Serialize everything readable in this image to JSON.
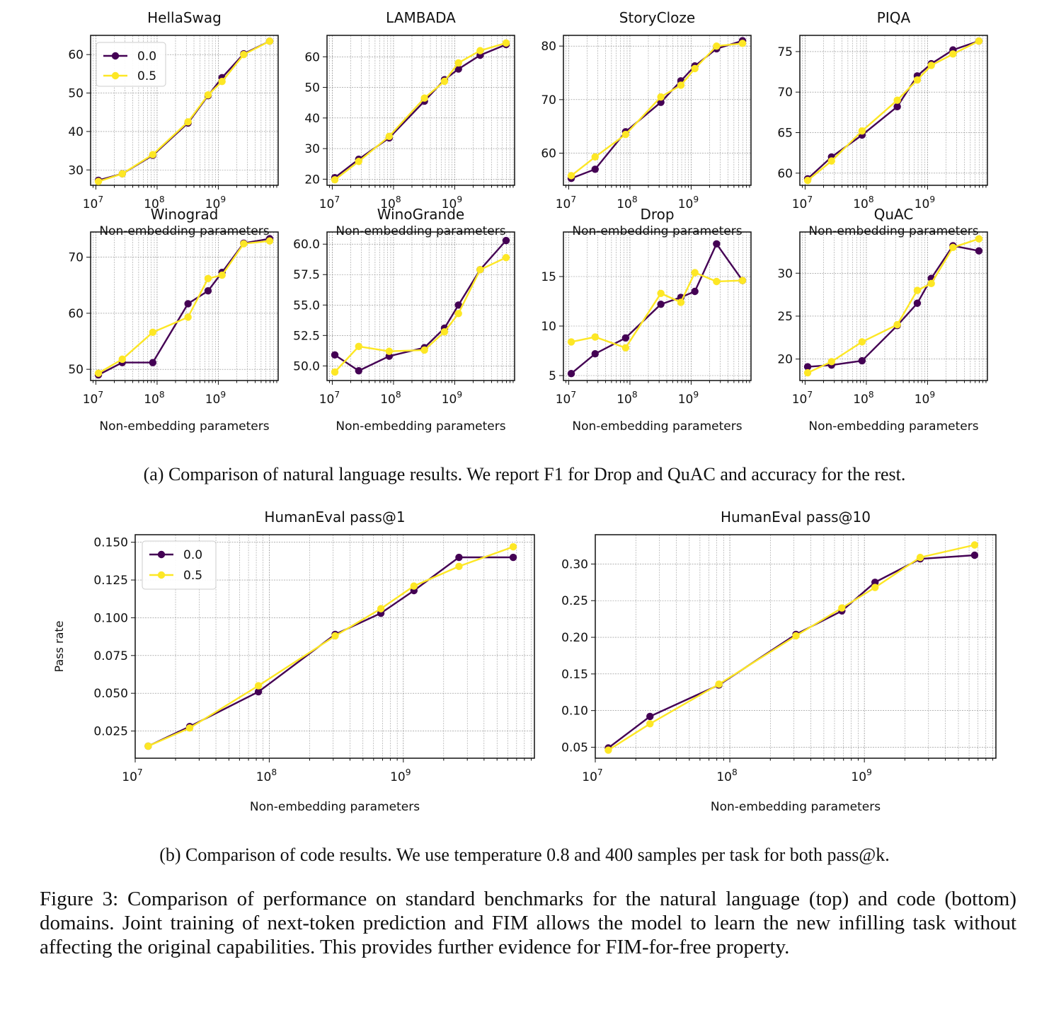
{
  "legend_labels": [
    "0.0",
    "0.5"
  ],
  "series_colors": {
    "0.0": "#440154",
    "0.5": "#fde725"
  },
  "caption_a": "(a) Comparison of natural language results. We report F1 for Drop and QuAC and accuracy for the rest.",
  "caption_b": "(b) Comparison of code results. We use temperature 0.8 and 400 samples per task for both pass@k.",
  "figure_caption": "Figure 3: Comparison of performance on standard benchmarks for the natural language (top) and code (bottom) domains. Joint training of next-token prediction and FIM allows the model to learn the new infilling task without affecting the original capabilities. This provides further evidence for FIM-for-free property.",
  "chart_data": [
    {
      "type": "line",
      "title": "HellaSwag",
      "xlabel": "Non-embedding parameters",
      "ylabel": "",
      "xscale": "log",
      "xlim": [
        8200000.0,
        9500000000.0
      ],
      "ylim": [
        26,
        65
      ],
      "yticks": [
        30,
        40,
        50,
        60
      ],
      "yticklabels": [
        "30",
        "40",
        "50",
        "60"
      ],
      "xticklabels": [
        "10^7",
        "10^8",
        "10^9"
      ],
      "grid": true,
      "legend": "upper left",
      "x": [
        11000000.0,
        27000000.0,
        85000000.0,
        320000000.0,
        680000000.0,
        1150000000.0,
        2600000000.0,
        6900000000.0
      ],
      "series": [
        {
          "name": "0.0",
          "values": [
            27.3,
            29.0,
            33.8,
            42.2,
            49.3,
            54.0,
            60.2,
            63.5
          ]
        },
        {
          "name": "0.5",
          "values": [
            27.0,
            29.0,
            34.0,
            42.5,
            49.5,
            53.0,
            60.0,
            63.5
          ]
        }
      ]
    },
    {
      "type": "line",
      "title": "LAMBADA",
      "xlabel": "Non-embedding parameters",
      "ylabel": "",
      "xscale": "log",
      "xlim": [
        8200000.0,
        9500000000.0
      ],
      "ylim": [
        18,
        67
      ],
      "yticks": [
        20,
        30,
        40,
        50,
        60
      ],
      "yticklabels": [
        "20",
        "30",
        "40",
        "50",
        "60"
      ],
      "xticklabels": [
        "10^7",
        "10^8",
        "10^9"
      ],
      "grid": true,
      "legend": "",
      "x": [
        11000000.0,
        27000000.0,
        85000000.0,
        320000000.0,
        680000000.0,
        1150000000.0,
        2600000000.0,
        6900000000.0
      ],
      "series": [
        {
          "name": "0.0",
          "values": [
            20.5,
            26.5,
            33.5,
            45.5,
            52.5,
            56.0,
            60.5,
            64.0
          ]
        },
        {
          "name": "0.5",
          "values": [
            19.8,
            25.8,
            34.0,
            46.5,
            52.0,
            58.0,
            62.0,
            64.5
          ]
        }
      ]
    },
    {
      "type": "line",
      "title": "StoryCloze",
      "xlabel": "Non-embedding parameters",
      "ylabel": "",
      "xscale": "log",
      "xlim": [
        8200000.0,
        9500000000.0
      ],
      "ylim": [
        54,
        82
      ],
      "yticks": [
        60,
        70,
        80
      ],
      "yticklabels": [
        "60",
        "70",
        "80"
      ],
      "xticklabels": [
        "10^7",
        "10^8",
        "10^9"
      ],
      "grid": true,
      "legend": "",
      "x": [
        11000000.0,
        27000000.0,
        85000000.0,
        320000000.0,
        680000000.0,
        1150000000.0,
        2600000000.0,
        6900000000.0
      ],
      "series": [
        {
          "name": "0.0",
          "values": [
            55.3,
            57.0,
            64.0,
            69.5,
            73.5,
            76.3,
            79.5,
            81.0
          ]
        },
        {
          "name": "0.5",
          "values": [
            55.8,
            59.3,
            63.5,
            70.5,
            72.7,
            75.8,
            80.0,
            80.5
          ]
        }
      ]
    },
    {
      "type": "line",
      "title": "PIQA",
      "xlabel": "Non-embedding parameters",
      "ylabel": "",
      "xscale": "log",
      "xlim": [
        8200000.0,
        9500000000.0
      ],
      "ylim": [
        58.5,
        77
      ],
      "yticks": [
        60,
        65,
        70,
        75
      ],
      "yticklabels": [
        "60",
        "65",
        "70",
        "75"
      ],
      "xticklabels": [
        "10^7",
        "10^8",
        "10^9"
      ],
      "grid": true,
      "legend": "",
      "x": [
        11000000.0,
        27000000.0,
        85000000.0,
        320000000.0,
        680000000.0,
        1150000000.0,
        2600000000.0,
        6900000000.0
      ],
      "series": [
        {
          "name": "0.0",
          "values": [
            59.3,
            62.0,
            64.7,
            68.2,
            72.0,
            73.5,
            75.2,
            76.3
          ]
        },
        {
          "name": "0.5",
          "values": [
            59.1,
            61.5,
            65.2,
            69.0,
            71.5,
            73.3,
            74.7,
            76.3
          ]
        }
      ]
    },
    {
      "type": "line",
      "title": "Winograd",
      "xlabel": "Non-embedding parameters",
      "ylabel": "",
      "xscale": "log",
      "xlim": [
        8200000.0,
        9500000000.0
      ],
      "ylim": [
        48,
        74.5
      ],
      "yticks": [
        50,
        60,
        70
      ],
      "yticklabels": [
        "50",
        "60",
        "70"
      ],
      "xticklabels": [
        "10^7",
        "10^8",
        "10^9"
      ],
      "grid": true,
      "legend": "",
      "x": [
        11000000.0,
        27000000.0,
        85000000.0,
        320000000.0,
        680000000.0,
        1150000000.0,
        2600000000.0,
        6900000000.0
      ],
      "series": [
        {
          "name": "0.0",
          "values": [
            49.0,
            51.2,
            51.2,
            61.7,
            64.0,
            67.3,
            72.5,
            73.3
          ]
        },
        {
          "name": "0.5",
          "values": [
            49.3,
            51.8,
            56.6,
            59.3,
            66.2,
            66.8,
            72.4,
            72.9
          ]
        }
      ]
    },
    {
      "type": "line",
      "title": "WinoGrande",
      "xlabel": "Non-embedding parameters",
      "ylabel": "",
      "xscale": "log",
      "xlim": [
        8200000.0,
        9500000000.0
      ],
      "ylim": [
        48.8,
        61.0
      ],
      "yticks": [
        50.0,
        52.5,
        55.0,
        57.5,
        60.0
      ],
      "yticklabels": [
        "50.0",
        "52.5",
        "55.0",
        "57.5",
        "60.0"
      ],
      "xticklabels": [
        "10^7",
        "10^8",
        "10^9"
      ],
      "grid": true,
      "legend": "",
      "x": [
        11000000.0,
        27000000.0,
        85000000.0,
        320000000.0,
        680000000.0,
        1150000000.0,
        2600000000.0,
        6900000000.0
      ],
      "series": [
        {
          "name": "0.0",
          "values": [
            50.9,
            49.6,
            50.8,
            51.5,
            53.1,
            55.0,
            57.9,
            60.3
          ]
        },
        {
          "name": "0.5",
          "values": [
            49.5,
            51.6,
            51.2,
            51.3,
            52.8,
            54.3,
            57.9,
            58.9
          ]
        }
      ]
    },
    {
      "type": "line",
      "title": "Drop",
      "xlabel": "Non-embedding parameters",
      "ylabel": "",
      "xscale": "log",
      "xlim": [
        8200000.0,
        9500000000.0
      ],
      "ylim": [
        4.5,
        19.5
      ],
      "yticks": [
        5,
        10,
        15
      ],
      "yticklabels": [
        "5",
        "10",
        "15"
      ],
      "xticklabels": [
        "10^7",
        "10^8",
        "10^9"
      ],
      "grid": true,
      "legend": "",
      "x": [
        11000000.0,
        27000000.0,
        85000000.0,
        320000000.0,
        680000000.0,
        1150000000.0,
        2600000000.0,
        6900000000.0
      ],
      "series": [
        {
          "name": "0.0",
          "values": [
            5.2,
            7.2,
            8.8,
            12.2,
            12.9,
            13.5,
            18.3,
            14.6
          ]
        },
        {
          "name": "0.5",
          "values": [
            8.4,
            8.9,
            7.8,
            13.3,
            12.4,
            15.4,
            14.5,
            14.6
          ]
        }
      ]
    },
    {
      "type": "line",
      "title": "QuAC",
      "xlabel": "Non-embedding parameters",
      "ylabel": "",
      "xscale": "log",
      "xlim": [
        8200000.0,
        9500000000.0
      ],
      "ylim": [
        17.5,
        34.8
      ],
      "yticks": [
        20,
        25,
        30
      ],
      "yticklabels": [
        "20",
        "25",
        "30"
      ],
      "xticklabels": [
        "10^7",
        "10^8",
        "10^9"
      ],
      "grid": true,
      "legend": "",
      "x": [
        11000000.0,
        27000000.0,
        85000000.0,
        320000000.0,
        680000000.0,
        1150000000.0,
        2600000000.0,
        6900000000.0
      ],
      "series": [
        {
          "name": "0.0",
          "values": [
            19.1,
            19.3,
            19.8,
            23.9,
            26.5,
            29.4,
            33.2,
            32.6
          ]
        },
        {
          "name": "0.5",
          "values": [
            18.4,
            19.7,
            22.0,
            24.0,
            28.0,
            28.8,
            33.0,
            34.0
          ]
        }
      ]
    },
    {
      "type": "line",
      "title": "HumanEval pass@1",
      "xlabel": "Non-embedding parameters",
      "ylabel": "Pass rate",
      "xscale": "log",
      "xlim": [
        10000000.0,
        9500000000.0
      ],
      "ylim": [
        0.007,
        0.155
      ],
      "yticks": [
        0.025,
        0.05,
        0.075,
        0.1,
        0.125,
        0.15
      ],
      "yticklabels": [
        "0.025",
        "0.050",
        "0.075",
        "0.100",
        "0.125",
        "0.150"
      ],
      "xticklabels": [
        "10^7",
        "10^8",
        "10^9"
      ],
      "grid": true,
      "legend": "upper left",
      "x": [
        12500000.0,
        25500000.0,
        83000000.0,
        310000000.0,
        680000000.0,
        1200000000.0,
        2600000000.0,
        6600000000.0
      ],
      "series": [
        {
          "name": "0.0",
          "values": [
            0.015,
            0.028,
            0.051,
            0.089,
            0.103,
            0.118,
            0.14,
            0.14
          ]
        },
        {
          "name": "0.5",
          "values": [
            0.015,
            0.027,
            0.055,
            0.088,
            0.106,
            0.121,
            0.134,
            0.147
          ]
        }
      ]
    },
    {
      "type": "line",
      "title": "HumanEval pass@10",
      "xlabel": "Non-embedding parameters",
      "ylabel": "",
      "xscale": "log",
      "xlim": [
        10000000.0,
        9500000000.0
      ],
      "ylim": [
        0.035,
        0.34
      ],
      "yticks": [
        0.05,
        0.1,
        0.15,
        0.2,
        0.25,
        0.3
      ],
      "yticklabels": [
        "0.05",
        "0.10",
        "0.15",
        "0.20",
        "0.25",
        "0.30"
      ],
      "xticklabels": [
        "10^7",
        "10^8",
        "10^9"
      ],
      "grid": true,
      "legend": "",
      "x": [
        12500000.0,
        25500000.0,
        83000000.0,
        310000000.0,
        680000000.0,
        1200000000.0,
        2600000000.0,
        6600000000.0
      ],
      "series": [
        {
          "name": "0.0",
          "values": [
            0.049,
            0.092,
            0.135,
            0.204,
            0.236,
            0.275,
            0.307,
            0.312
          ]
        },
        {
          "name": "0.5",
          "values": [
            0.046,
            0.082,
            0.136,
            0.202,
            0.24,
            0.268,
            0.309,
            0.326
          ]
        }
      ]
    }
  ]
}
